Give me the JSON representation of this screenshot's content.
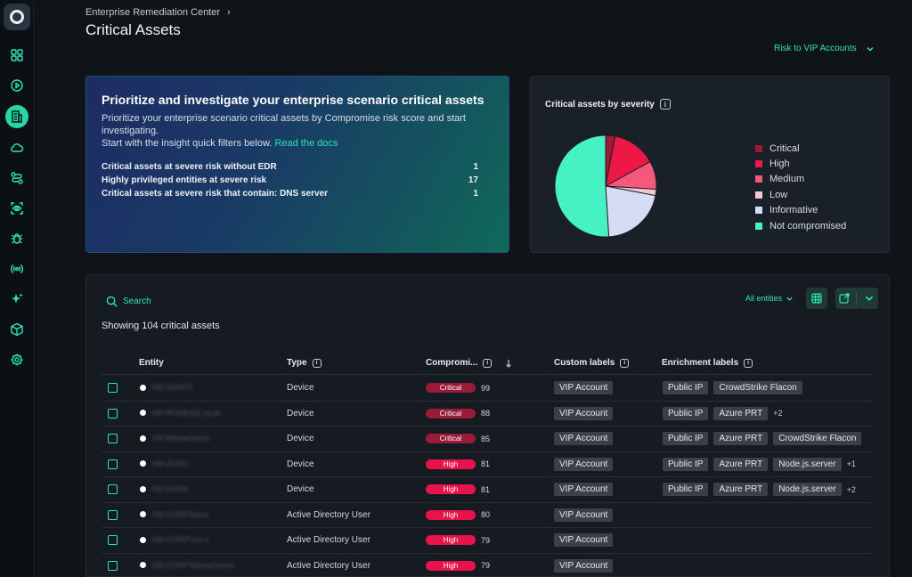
{
  "breadcrumb": {
    "parent": "Enterprise Remediation Center",
    "separator": "›"
  },
  "page_title": "Critical Assets",
  "risk_dropdown": {
    "label": "Risk to VIP Accounts"
  },
  "insight": {
    "title": "Prioritize and investigate your enterprise scenario critical assets",
    "desc1": "Prioritize your enterprise scenario critical assets by Compromise risk score and start investigating.",
    "desc2": "Start with the insight quick filters below.",
    "link": "Read the docs",
    "rows": [
      {
        "label": "Critical assets at severe risk without EDR",
        "value": "1"
      },
      {
        "label": "Highly privileged entities at severe risk",
        "value": "17"
      },
      {
        "label": "Critical assets at severe risk that contain: DNS server",
        "value": "1"
      }
    ]
  },
  "severity": {
    "title": "Critical assets by severity",
    "info": "i",
    "legend": [
      {
        "label": "Critical",
        "color": "#9b1a35"
      },
      {
        "label": "High",
        "color": "#ee1846"
      },
      {
        "label": "Medium",
        "color": "#f4587a"
      },
      {
        "label": "Low",
        "color": "#f7c6d2"
      },
      {
        "label": "Informative",
        "color": "#d6dcf4"
      },
      {
        "label": "Not compromised",
        "color": "#46f2c4"
      }
    ]
  },
  "chart_data": {
    "type": "pie",
    "title": "Critical assets by severity",
    "labels": [
      "Critical",
      "High",
      "Medium",
      "Low",
      "Informative",
      "Not compromised"
    ],
    "values": [
      3,
      14,
      9,
      2,
      21,
      51
    ],
    "colors": [
      "#9b1a35",
      "#ee1846",
      "#f4587a",
      "#f7c6d2",
      "#d6dcf4",
      "#46f2c4"
    ]
  },
  "table": {
    "search_label": "Search",
    "filter_label": "All entities",
    "showing": "Showing 104 critical assets",
    "headers": {
      "entity": "Entity",
      "type": "Type",
      "compromise": "Compromi...",
      "custom": "Custom labels",
      "enrichment": "Enrichment labels"
    },
    "rows": [
      {
        "entity": "XM-SHAYS",
        "type": "Device",
        "severity": "Critical",
        "score": "99",
        "custom": "VIP Account",
        "enrichment": [
          "Public IP",
          "CrowdStrike Flacon"
        ],
        "more": ""
      },
      {
        "entity": "XM-RONENG.local",
        "type": "Device",
        "severity": "Critical",
        "score": "88",
        "custom": "VIP Account",
        "enrichment": [
          "Public IP",
          "Azure PRT"
        ],
        "more": "+2"
      },
      {
        "entity": "XM-Menachems",
        "type": "Device",
        "severity": "Critical",
        "score": "85",
        "custom": "VIP Account",
        "enrichment": [
          "Public IP",
          "Azure PRT",
          "CrowdStrike Flacon"
        ],
        "more": ""
      },
      {
        "entity": "XM-ZURU",
        "type": "Device",
        "severity": "High",
        "score": "81",
        "custom": "VIP Account",
        "enrichment": [
          "Public IP",
          "Azure PRT",
          "Node.js.server"
        ],
        "more": "+1"
      },
      {
        "entity": "XM-DANA",
        "type": "Device",
        "severity": "High",
        "score": "81",
        "custom": "VIP Account",
        "enrichment": [
          "Public IP",
          "Azure PRT",
          "Node.js.server"
        ],
        "more": "+2"
      },
      {
        "entity": "XM-CORP\\booz",
        "type": "Active Directory User",
        "severity": "High",
        "score": "80",
        "custom": "VIP Account",
        "enrichment": [],
        "more": ""
      },
      {
        "entity": "XM-CORP\\zur.u",
        "type": "Active Directory User",
        "severity": "High",
        "score": "79",
        "custom": "VIP Account",
        "enrichment": [],
        "more": ""
      },
      {
        "entity": "XM-CORP\\Menachems",
        "type": "Active Directory User",
        "severity": "High",
        "score": "79",
        "custom": "VIP Account",
        "enrichment": [],
        "more": ""
      }
    ]
  }
}
